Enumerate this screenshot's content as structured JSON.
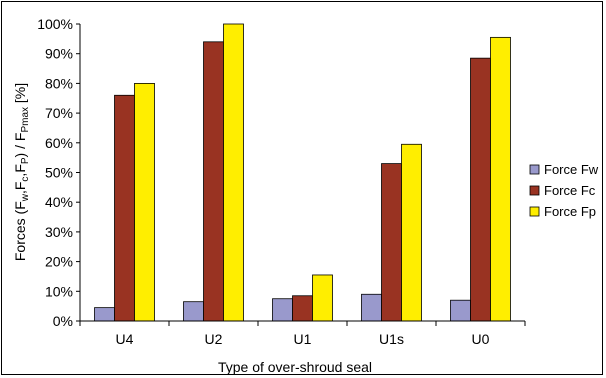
{
  "chart_data": {
    "type": "bar",
    "categories": [
      "U4",
      "U2",
      "U1",
      "U1s",
      "U0"
    ],
    "series": [
      {
        "name": "Force Fw",
        "color": "#9999cc",
        "values": [
          4.5,
          6.5,
          7.5,
          9,
          7
        ]
      },
      {
        "name": "Force Fc",
        "color": "#993322",
        "values": [
          76,
          94,
          8.5,
          53,
          88.5
        ]
      },
      {
        "name": "Force Fp",
        "color": "#ffee00",
        "values": [
          80,
          100,
          15.5,
          59.5,
          95.5
        ]
      }
    ],
    "xlabel": "Type of over-shroud seal",
    "ylabel_main": "Forces (F",
    "ylabel_sub1": "w",
    "ylabel_sep1": ",F",
    "ylabel_sub2": "c",
    "ylabel_sep2": ",F",
    "ylabel_sub3": "P",
    "ylabel_mid": ") / F",
    "ylabel_sub4": "Pmax",
    "ylabel_end": " [%]",
    "ylim": [
      0,
      100
    ],
    "yticks": [
      "0%",
      "10%",
      "20%",
      "30%",
      "40%",
      "50%",
      "60%",
      "70%",
      "80%",
      "90%",
      "100%"
    ],
    "legend_position": "right",
    "grid": false
  }
}
